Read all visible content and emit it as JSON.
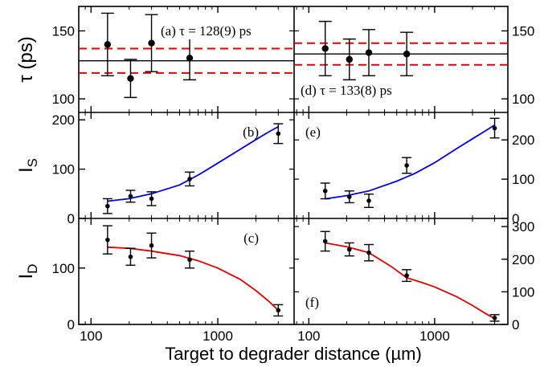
{
  "chart_data": {
    "type": "scatter",
    "layout": "3x2 grid of panels with shared log x-axis",
    "xlabel": "Target to degrader distance (µm)",
    "xscale": "log",
    "xlim": [
      80,
      4000
    ],
    "x_ticks": [
      100,
      1000
    ],
    "x_tick_labels": [
      "100",
      "1000"
    ],
    "rows": [
      {
        "ylabel": "τ (ps)",
        "ylabel_main": "τ",
        "ylabel_rest": " (ps)",
        "ylabel_sub": "",
        "ylim": [
          90,
          168
        ],
        "y_ticks": [
          100,
          150
        ],
        "y_tick_labels": [
          "100",
          "150"
        ]
      },
      {
        "ylabel": "I_S",
        "ylabel_main": "I",
        "ylabel_rest": "",
        "ylabel_sub": "S",
        "ylim": [
          0,
          215
        ],
        "left_ticks": [
          0,
          100,
          200
        ],
        "left_tick_labels": [
          "0",
          "100",
          "200"
        ],
        "right_ticks": [
          0,
          100,
          200
        ],
        "right_tick_labels": [
          "0",
          "100",
          "200"
        ]
      },
      {
        "ylabel": "I_D",
        "ylabel_main": "I",
        "ylabel_rest": "",
        "ylabel_sub": "D",
        "ylim": [
          0,
          188
        ],
        "left_ticks": [
          0,
          100
        ],
        "left_tick_labels": [
          "0",
          "100"
        ],
        "right_ticks": [
          0,
          100,
          200,
          300
        ],
        "right_tick_labels": [
          "0",
          "100",
          "200",
          "300"
        ]
      }
    ],
    "panels": [
      {
        "id": "a",
        "row": 0,
        "col": 0,
        "label": "(a) τ = 128(9) ps",
        "points": [
          {
            "x": 135,
            "y": 140,
            "err": 23
          },
          {
            "x": 205,
            "y": 115,
            "err": 14
          },
          {
            "x": 300,
            "y": 141,
            "err": 21
          },
          {
            "x": 600,
            "y": 130,
            "err": 16
          }
        ],
        "hlines": [
          {
            "y": 128,
            "style": "solid",
            "color": "#000000"
          },
          {
            "y": 137,
            "style": "dashed",
            "color": "#e00000"
          },
          {
            "y": 119,
            "style": "dashed",
            "color": "#e00000"
          }
        ]
      },
      {
        "id": "d",
        "row": 0,
        "col": 1,
        "label": "(d) τ = 133(8) ps",
        "points": [
          {
            "x": 135,
            "y": 137,
            "err": 20
          },
          {
            "x": 210,
            "y": 129,
            "err": 15
          },
          {
            "x": 300,
            "y": 134,
            "err": 17
          },
          {
            "x": 600,
            "y": 133,
            "err": 16
          }
        ],
        "hlines": [
          {
            "y": 133,
            "style": "solid",
            "color": "#000000"
          },
          {
            "y": 141,
            "style": "dashed",
            "color": "#e00000"
          },
          {
            "y": 125,
            "style": "dashed",
            "color": "#e00000"
          }
        ]
      },
      {
        "id": "b",
        "row": 1,
        "col": 0,
        "label": "(b)",
        "points": [
          {
            "x": 135,
            "y": 25,
            "err": 15
          },
          {
            "x": 205,
            "y": 45,
            "err": 12
          },
          {
            "x": 300,
            "y": 40,
            "err": 14
          },
          {
            "x": 600,
            "y": 80,
            "err": 14
          },
          {
            "x": 3000,
            "y": 172,
            "err": 20
          }
        ],
        "curve": {
          "color": "#0000dd",
          "points": [
            [
              135,
              35
            ],
            [
              200,
              40
            ],
            [
              300,
              50
            ],
            [
              500,
              68
            ],
            [
              700,
              88
            ],
            [
              1000,
              112
            ],
            [
              1500,
              140
            ],
            [
              2000,
              160
            ],
            [
              2500,
              175
            ],
            [
              3000,
              186
            ]
          ]
        }
      },
      {
        "id": "e",
        "row": 1,
        "col": 1,
        "label": "(e)",
        "points": [
          {
            "x": 135,
            "y": 70,
            "err": 20
          },
          {
            "x": 210,
            "y": 55,
            "err": 15
          },
          {
            "x": 300,
            "y": 45,
            "err": 17
          },
          {
            "x": 600,
            "y": 135,
            "err": 20
          },
          {
            "x": 3000,
            "y": 230,
            "err": 25
          }
        ],
        "curve": {
          "color": "#0000dd",
          "points": [
            [
              135,
              50
            ],
            [
              200,
              58
            ],
            [
              300,
              70
            ],
            [
              500,
              95
            ],
            [
              700,
              115
            ],
            [
              1000,
              142
            ],
            [
              1500,
              178
            ],
            [
              2000,
              203
            ],
            [
              2500,
              222
            ],
            [
              3000,
              238
            ]
          ]
        }
      },
      {
        "id": "c",
        "row": 2,
        "col": 0,
        "label": "(c)",
        "points": [
          {
            "x": 135,
            "y": 150,
            "err": 25
          },
          {
            "x": 205,
            "y": 120,
            "err": 15
          },
          {
            "x": 300,
            "y": 140,
            "err": 22
          },
          {
            "x": 600,
            "y": 115,
            "err": 15
          },
          {
            "x": 3000,
            "y": 25,
            "err": 10
          }
        ],
        "curve": {
          "color": "#e00000",
          "points": [
            [
              135,
              137
            ],
            [
              200,
              135
            ],
            [
              300,
              130
            ],
            [
              500,
              122
            ],
            [
              700,
              113
            ],
            [
              1000,
              100
            ],
            [
              1500,
              80
            ],
            [
              2000,
              60
            ],
            [
              2500,
              42
            ],
            [
              3000,
              25
            ]
          ]
        }
      },
      {
        "id": "f",
        "row": 2,
        "col": 1,
        "label": "(f)",
        "points": [
          {
            "x": 135,
            "y": 255,
            "err": 30
          },
          {
            "x": 210,
            "y": 230,
            "err": 20
          },
          {
            "x": 300,
            "y": 220,
            "err": 25
          },
          {
            "x": 600,
            "y": 150,
            "err": 18
          },
          {
            "x": 3000,
            "y": 20,
            "err": 10
          }
        ],
        "curve": {
          "color": "#e00000",
          "points": [
            [
              135,
              250
            ],
            [
              200,
              238
            ],
            [
              300,
              220
            ],
            [
              450,
              178
            ],
            [
              600,
              143
            ],
            [
              800,
              128
            ],
            [
              1000,
              115
            ],
            [
              1500,
              85
            ],
            [
              2000,
              58
            ],
            [
              2500,
              35
            ],
            [
              3000,
              18
            ]
          ]
        }
      }
    ]
  }
}
